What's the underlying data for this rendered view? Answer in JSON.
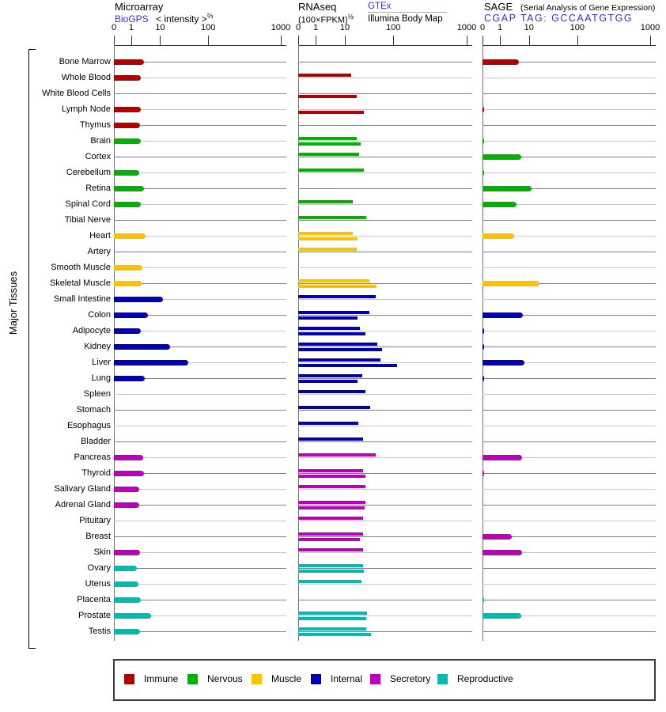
{
  "chart_data": {
    "type": "bar",
    "orientation": "horizontal",
    "group_label": "Major Tissues",
    "x_axis": {
      "ticks": [
        "0",
        "1",
        "10",
        "100",
        "1000"
      ],
      "scale": "log-like",
      "range": [
        0,
        1000
      ]
    },
    "panels": [
      {
        "id": "microarray",
        "title": "Microarray",
        "link": "BioGPS",
        "unit": "< intensity >",
        "unit_exp": "⅔"
      },
      {
        "id": "rnaseq",
        "title": "RNAseq",
        "unit": "(100×FPKM)",
        "unit_exp": "½",
        "link": "GTEx",
        "sublabel": "Illumina Body Map"
      },
      {
        "id": "sage",
        "title": "SAGE",
        "subtitle": "(Serial Analysis of Gene Expression)",
        "link": "CGAP TAG: GCCAATGTGG"
      }
    ],
    "group_colors": {
      "Immune": "#B30000",
      "Nervous": "#00B200",
      "Muscle": "#FCC200",
      "Internal": "#0000BB",
      "Secretory": "#BB00BB",
      "Reproductive": "#00BBB2"
    },
    "link_color": "#3333CC",
    "legend": [
      "Immune",
      "Nervous",
      "Muscle",
      "Internal",
      "Secretory",
      "Reproductive"
    ],
    "tissues": [
      {
        "name": "Bone Marrow",
        "group": "Immune",
        "microarray": 2.7,
        "gtex": null,
        "illumina": null,
        "sage": 4.5
      },
      {
        "name": "Whole Blood",
        "group": "Immune",
        "microarray": 2.1,
        "gtex": 13.4,
        "illumina": null,
        "sage": null
      },
      {
        "name": "White Blood Cells",
        "group": "Immune",
        "microarray": null,
        "gtex": null,
        "illumina": 17.4,
        "sage": null
      },
      {
        "name": "Lymph Node",
        "group": "Immune",
        "microarray": 2.1,
        "gtex": null,
        "illumina": 24.8,
        "sage": 0.1
      },
      {
        "name": "Thymus",
        "group": "Immune",
        "microarray": 2.0,
        "gtex": null,
        "illumina": null,
        "sage": null
      },
      {
        "name": "Brain",
        "group": "Nervous",
        "microarray": 2.1,
        "gtex": 17.3,
        "illumina": 21.5,
        "sage": 0.1
      },
      {
        "name": "Cortex",
        "group": "Nervous",
        "microarray": null,
        "gtex": 19.7,
        "illumina": null,
        "sage": 5.3
      },
      {
        "name": "Cerebellum",
        "group": "Nervous",
        "microarray": 1.9,
        "gtex": 24.8,
        "illumina": null,
        "sage": 0.1
      },
      {
        "name": "Retina",
        "group": "Nervous",
        "microarray": 2.7,
        "gtex": null,
        "illumina": null,
        "sage": 11.4
      },
      {
        "name": "Spinal Cord",
        "group": "Nervous",
        "microarray": 2.1,
        "gtex": 14.5,
        "illumina": null,
        "sage": 3.8
      },
      {
        "name": "Tibial Nerve",
        "group": "Nervous",
        "microarray": null,
        "gtex": 27.9,
        "illumina": null,
        "sage": null
      },
      {
        "name": "Heart",
        "group": "Muscle",
        "microarray": 3.1,
        "gtex": 14.7,
        "illumina": 18.0,
        "sage": 3.1
      },
      {
        "name": "Artery",
        "group": "Muscle",
        "microarray": null,
        "gtex": 17.4,
        "illumina": null,
        "sage": null
      },
      {
        "name": "Smooth Muscle",
        "group": "Muscle",
        "microarray": 2.4,
        "gtex": null,
        "illumina": null,
        "sage": null
      },
      {
        "name": "Skeletal Muscle",
        "group": "Muscle",
        "microarray": 2.3,
        "gtex": 32.0,
        "illumina": 44.7,
        "sage": 16.2
      },
      {
        "name": "Small Intestine",
        "group": "Internal",
        "microarray": 11.3,
        "gtex": 43.7,
        "illumina": null,
        "sage": null
      },
      {
        "name": "Colon",
        "group": "Internal",
        "microarray": 3.7,
        "gtex": 31.8,
        "illumina": 17.9,
        "sage": 6.3
      },
      {
        "name": "Adipocyte",
        "group": "Internal",
        "microarray": 2.1,
        "gtex": 20.5,
        "illumina": 26.5,
        "sage": 0.1
      },
      {
        "name": "Kidney",
        "group": "Internal",
        "microarray": 15.8,
        "gtex": 45.9,
        "illumina": 57.7,
        "sage": 0.1
      },
      {
        "name": "Liver",
        "group": "Internal",
        "microarray": 39.0,
        "gtex": 55.0,
        "illumina": 113.0,
        "sage": 7.2
      },
      {
        "name": "Lung",
        "group": "Internal",
        "microarray": 2.9,
        "gtex": 23.0,
        "illumina": 18.2,
        "sage": 0.1
      },
      {
        "name": "Spleen",
        "group": "Internal",
        "microarray": null,
        "gtex": 26.5,
        "illumina": null,
        "sage": null
      },
      {
        "name": "Stomach",
        "group": "Internal",
        "microarray": null,
        "gtex": 33.0,
        "illumina": null,
        "sage": null
      },
      {
        "name": "Esophagus",
        "group": "Internal",
        "microarray": null,
        "gtex": 18.6,
        "illumina": null,
        "sage": null
      },
      {
        "name": "Bladder",
        "group": "Internal",
        "microarray": null,
        "gtex": 24.0,
        "illumina": null,
        "sage": null
      },
      {
        "name": "Pancreas",
        "group": "Secretory",
        "microarray": 2.6,
        "gtex": 44.0,
        "illumina": null,
        "sage": 5.7
      },
      {
        "name": "Thyroid",
        "group": "Secretory",
        "microarray": 2.7,
        "gtex": 24.0,
        "illumina": 26.5,
        "sage": 0.1
      },
      {
        "name": "Salivary Gland",
        "group": "Secretory",
        "microarray": 1.9,
        "gtex": 26.5,
        "illumina": null,
        "sage": null
      },
      {
        "name": "Adrenal Gland",
        "group": "Secretory",
        "microarray": 1.9,
        "gtex": 26.5,
        "illumina": 25.8,
        "sage": null
      },
      {
        "name": "Pituitary",
        "group": "Secretory",
        "microarray": null,
        "gtex": 24.0,
        "illumina": null,
        "sage": null
      },
      {
        "name": "Breast",
        "group": "Secretory",
        "microarray": null,
        "gtex": 23.4,
        "illumina": 20.6,
        "sage": 2.6
      },
      {
        "name": "Skin",
        "group": "Secretory",
        "microarray": 2.0,
        "gtex": 23.4,
        "illumina": null,
        "sage": 5.9
      },
      {
        "name": "Ovary",
        "group": "Reproductive",
        "microarray": 1.55,
        "gtex": 23.4,
        "illumina": 24.3,
        "sage": null
      },
      {
        "name": "Uterus",
        "group": "Reproductive",
        "microarray": 1.8,
        "gtex": 22.2,
        "illumina": null,
        "sage": null
      },
      {
        "name": "Placenta",
        "group": "Reproductive",
        "microarray": 2.1,
        "gtex": null,
        "illumina": null,
        "sage": 0.1
      },
      {
        "name": "Prostate",
        "group": "Reproductive",
        "microarray": 5.0,
        "gtex": 28.7,
        "illumina": 27.4,
        "sage": 5.6
      },
      {
        "name": "Testis",
        "group": "Reproductive",
        "microarray": 2.0,
        "gtex": 28.0,
        "illumina": 35.0,
        "sage": null
      }
    ]
  }
}
